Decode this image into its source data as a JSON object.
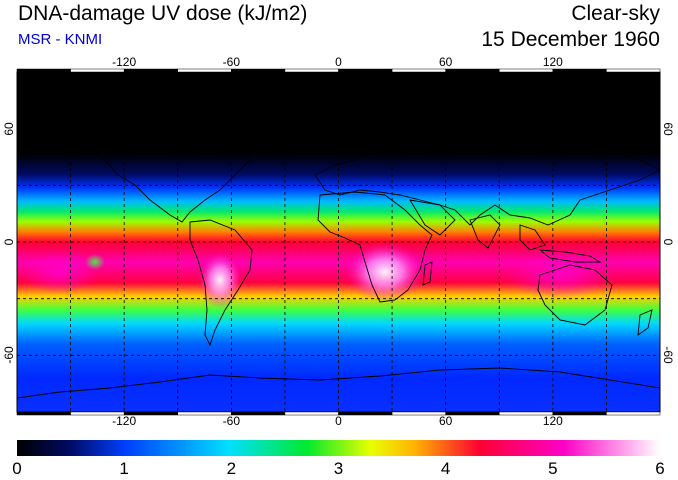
{
  "header": {
    "title": "DNA-damage UV dose (kJ/m2)",
    "source": "MSR - KNMI",
    "condition": "Clear-sky",
    "date": "15 December 1960"
  },
  "map": {
    "lon_ticks": [
      "-120",
      "-60",
      "0",
      "60",
      "120"
    ],
    "lon_values": [
      -120,
      -60,
      0,
      60,
      120
    ],
    "lat_ticks_left": [
      "60",
      "0",
      "-60"
    ],
    "lat_ticks_right": [
      "60",
      "0",
      "-60"
    ],
    "lat_values": [
      60,
      0,
      -60
    ],
    "lon_range": [
      -180,
      180
    ],
    "lat_range": [
      -90,
      90
    ],
    "grid": true,
    "grid_interval_deg": 30,
    "projection": "equirectangular",
    "colors": {
      "black": "#000000",
      "navy": "#000a60",
      "blue": "#0033ff",
      "cyan": "#00d8ff",
      "green": "#00e845",
      "yellow": "#ffe000",
      "red": "#ff0033",
      "magenta": "#ff00c8",
      "white": "#ffffff"
    }
  },
  "colorbar": {
    "labels": [
      "0",
      "1",
      "2",
      "3",
      "4",
      "5",
      "6"
    ],
    "min": 0,
    "max": 6,
    "units": "kJ/m2"
  }
}
